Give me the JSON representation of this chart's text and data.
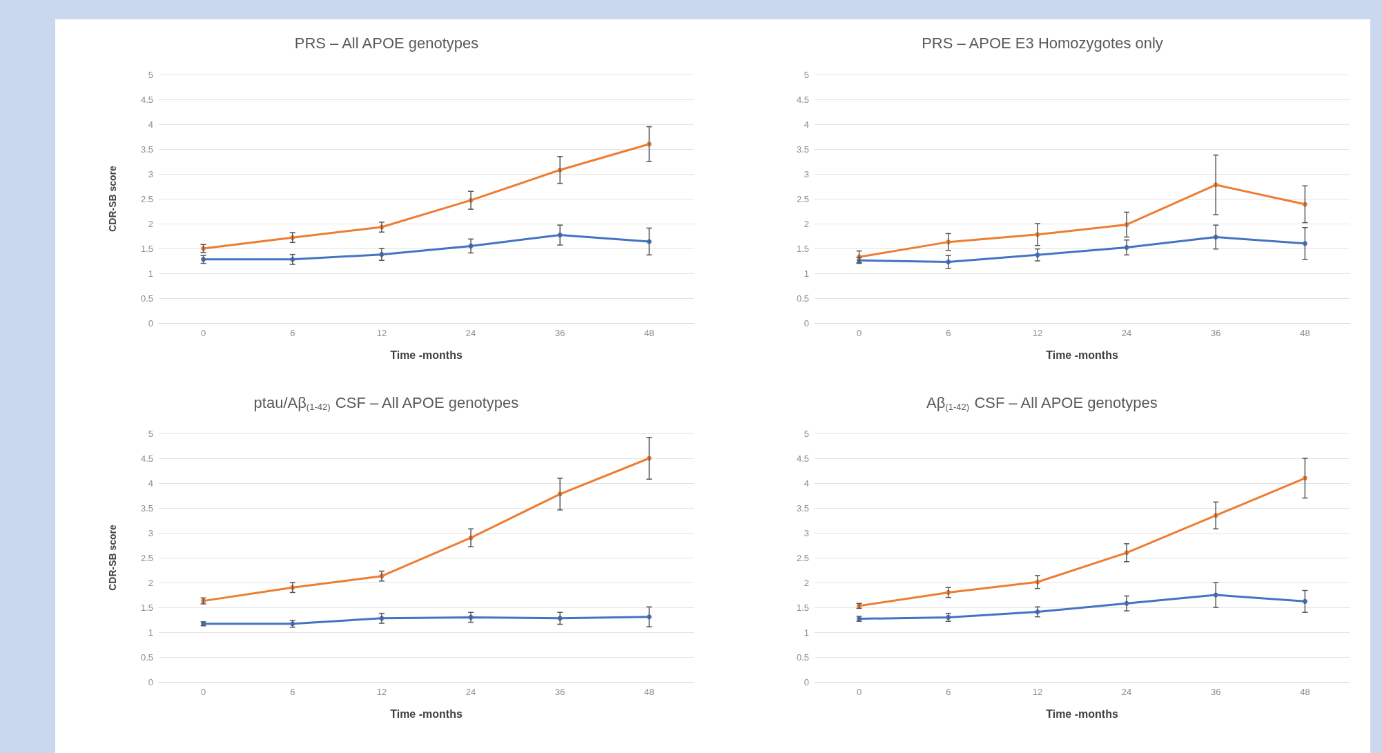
{
  "chart_data": [
    {
      "type": "line",
      "title": "PRS – All APOE genotypes",
      "xlabel": "Time -months",
      "ylabel": "CDR-SB score",
      "categories": [
        "0",
        "6",
        "12",
        "24",
        "36",
        "48"
      ],
      "ylim": [
        0,
        5
      ],
      "yticks": [
        0,
        0.5,
        1,
        1.5,
        2,
        2.5,
        3,
        3.5,
        4,
        4.5,
        5
      ],
      "grid": "y",
      "marker": "circle",
      "series": [
        {
          "color": "#4472c4",
          "values": [
            1.28,
            1.28,
            1.38,
            1.55,
            1.77,
            1.64
          ],
          "errors": [
            0.08,
            0.1,
            0.12,
            0.14,
            0.2,
            0.27
          ]
        },
        {
          "color": "#ed7d31",
          "values": [
            1.5,
            1.72,
            1.93,
            2.47,
            3.08,
            3.6
          ],
          "errors": [
            0.08,
            0.1,
            0.1,
            0.18,
            0.27,
            0.35
          ]
        }
      ]
    },
    {
      "type": "line",
      "title": "PRS – APOE E3 Homozygotes only",
      "xlabel": "Time -months",
      "categories": [
        "0",
        "6",
        "12",
        "24",
        "36",
        "48"
      ],
      "ylim": [
        0,
        5
      ],
      "yticks": [
        0,
        0.5,
        1,
        1.5,
        2,
        2.5,
        3,
        3.5,
        4,
        4.5,
        5
      ],
      "grid": "y",
      "marker": "circle",
      "series": [
        {
          "color": "#4472c4",
          "values": [
            1.26,
            1.23,
            1.37,
            1.52,
            1.73,
            1.6
          ],
          "errors": [
            0.06,
            0.13,
            0.12,
            0.15,
            0.24,
            0.32
          ]
        },
        {
          "color": "#ed7d31",
          "values": [
            1.33,
            1.63,
            1.78,
            1.98,
            2.78,
            2.39
          ],
          "errors": [
            0.12,
            0.17,
            0.22,
            0.25,
            0.6,
            0.37
          ]
        }
      ]
    },
    {
      "type": "line",
      "title": "ptau/Aβ$_{(1-42)}$ CSF – All APOE genotypes",
      "xlabel": "Time -months",
      "ylabel": "CDR-SB score",
      "categories": [
        "0",
        "6",
        "12",
        "24",
        "36",
        "48"
      ],
      "ylim": [
        0,
        5
      ],
      "yticks": [
        0,
        0.5,
        1,
        1.5,
        2,
        2.5,
        3,
        3.5,
        4,
        4.5,
        5
      ],
      "grid": "y",
      "marker": "circle",
      "series": [
        {
          "color": "#4472c4",
          "values": [
            1.17,
            1.17,
            1.28,
            1.3,
            1.28,
            1.31
          ],
          "errors": [
            0.04,
            0.07,
            0.1,
            0.1,
            0.12,
            0.2
          ]
        },
        {
          "color": "#ed7d31",
          "values": [
            1.63,
            1.9,
            2.13,
            2.9,
            3.78,
            4.5
          ],
          "errors": [
            0.06,
            0.1,
            0.1,
            0.18,
            0.32,
            0.42
          ]
        }
      ]
    },
    {
      "type": "line",
      "title": "Aβ$_{(1-42)}$ CSF – All APOE genotypes",
      "xlabel": "Time -months",
      "categories": [
        "0",
        "6",
        "12",
        "24",
        "36",
        "48"
      ],
      "ylim": [
        0,
        5
      ],
      "yticks": [
        0,
        0.5,
        1,
        1.5,
        2,
        2.5,
        3,
        3.5,
        4,
        4.5,
        5
      ],
      "grid": "y",
      "marker": "circle",
      "series": [
        {
          "color": "#4472c4",
          "values": [
            1.27,
            1.3,
            1.41,
            1.58,
            1.75,
            1.62
          ],
          "errors": [
            0.05,
            0.08,
            0.1,
            0.15,
            0.25,
            0.22
          ]
        },
        {
          "color": "#ed7d31",
          "values": [
            1.53,
            1.8,
            2.01,
            2.6,
            3.35,
            4.1
          ],
          "errors": [
            0.05,
            0.1,
            0.13,
            0.18,
            0.27,
            0.4
          ]
        }
      ]
    }
  ]
}
